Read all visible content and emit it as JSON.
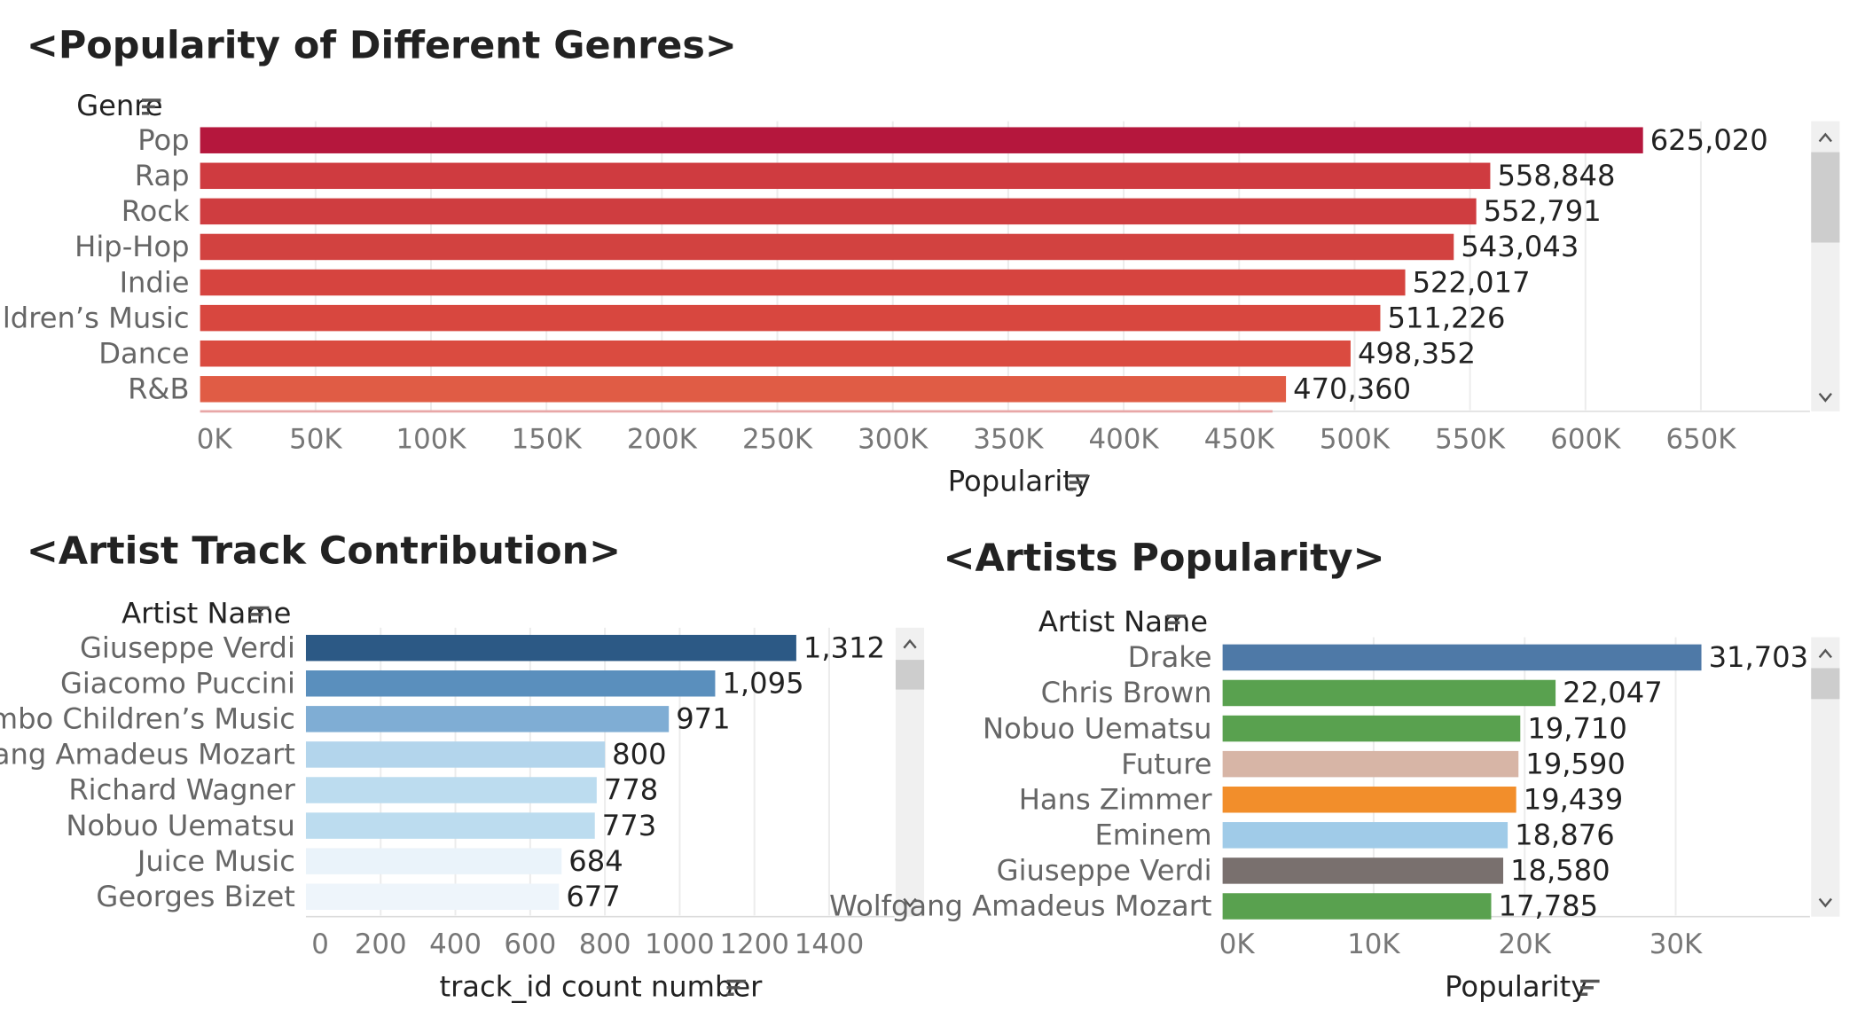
{
  "chart_data": [
    {
      "type": "bar",
      "orientation": "horizontal",
      "title": "<Popularity of Different Genres>",
      "category_header": "Genre",
      "xlabel": "Popularity",
      "categories": [
        "Pop",
        "Rap",
        "Rock",
        "Hip-Hop",
        "Indie",
        "Children’s Music",
        "Dance",
        "R&B"
      ],
      "values": [
        625020,
        558848,
        552791,
        543043,
        522017,
        511226,
        498352,
        470360
      ],
      "value_labels": [
        "625,020",
        "558,848",
        "552,791",
        "543,043",
        "522,017",
        "511,226",
        "498,352",
        "470,360"
      ],
      "colors": [
        "#b5173d",
        "#cf3b40",
        "#cf3d40",
        "#d24240",
        "#d6443f",
        "#d8473f",
        "#da4b40",
        "#e05c45"
      ],
      "ticks": [
        "0K",
        "50K",
        "100K",
        "150K",
        "200K",
        "250K",
        "300K",
        "350K",
        "400K",
        "450K",
        "500K",
        "550K",
        "600K",
        "650K"
      ],
      "xlim": [
        0,
        700000
      ],
      "grid": true
    },
    {
      "type": "bar",
      "orientation": "horizontal",
      "title": "<Artist Track Contribution>",
      "category_header": "Artist Name",
      "xlabel": "track_id  count number",
      "categories": [
        "Giuseppe Verdi",
        "Giacomo Puccini",
        "Kimbo Children’s Music",
        "Wolfgang Amadeus Mozart",
        "Richard Wagner",
        "Nobuo Uematsu",
        "Juice Music",
        "Georges Bizet"
      ],
      "values": [
        1312,
        1095,
        971,
        800,
        778,
        773,
        684,
        677
      ],
      "value_labels": [
        "1,312",
        "1,095",
        "971",
        "800",
        "778",
        "773",
        "684",
        "677"
      ],
      "colors": [
        "#2c5985",
        "#5a8fbd",
        "#7fadd4",
        "#b3d5ec",
        "#bcdcef",
        "#bcdcef",
        "#eaf3fa",
        "#eef5fb"
      ],
      "ticks": [
        "0",
        "200",
        "400",
        "600",
        "800",
        "1000",
        "1200",
        "1400"
      ],
      "xlim": [
        0,
        1550
      ],
      "grid": true
    },
    {
      "type": "bar",
      "orientation": "horizontal",
      "title": "<Artists Popularity>",
      "category_header": "Artist Name",
      "xlabel": "Popularity",
      "categories": [
        "Drake",
        "Chris Brown",
        "Nobuo Uematsu",
        "Future",
        "Hans Zimmer",
        "Eminem",
        "Giuseppe Verdi",
        "Wolfgang Amadeus Mozart"
      ],
      "values": [
        31703,
        22047,
        19710,
        19590,
        19439,
        18876,
        18580,
        17785
      ],
      "value_labels": [
        "31,703",
        "22,047",
        "19,710",
        "19,590",
        "19,439",
        "18,876",
        "18,580",
        "17,785"
      ],
      "colors": [
        "#4e79a7",
        "#59a14f",
        "#59a14f",
        "#d7b5a6",
        "#f28e2b",
        "#a0cbe8",
        "#79706e",
        "#59a14f"
      ],
      "ticks": [
        "0K",
        "10K",
        "20K",
        "30K"
      ],
      "xlim": [
        0,
        39000
      ],
      "grid": true
    }
  ],
  "colors": {
    "scrollbar_track": "#f0f0f0",
    "scrollbar_thumb": "#cdcdcd",
    "arrow": "#555555"
  },
  "icons": {
    "sort": "sort-descending-icon",
    "scroll_up": "chevron-up-icon",
    "scroll_down": "chevron-down-icon"
  }
}
